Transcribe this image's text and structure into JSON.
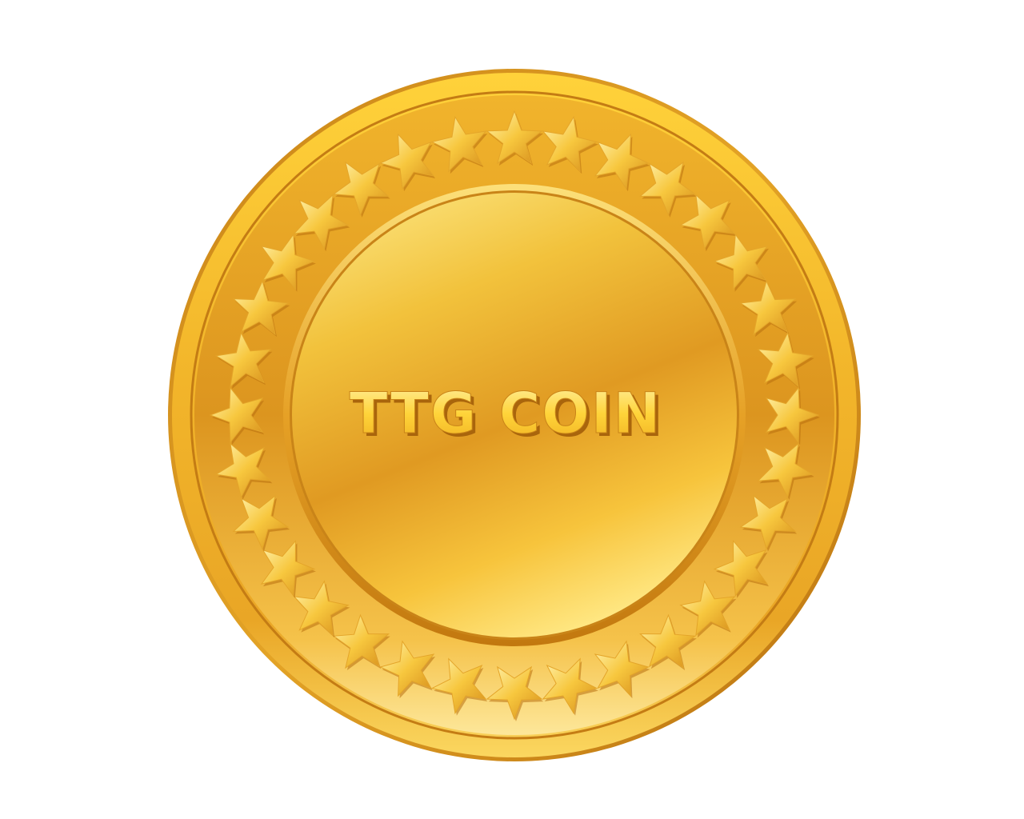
{
  "coin": {
    "label": "TTG COIN",
    "star_count": 32,
    "colors": {
      "background": "#ffffff",
      "gold_light": "#ffe680",
      "gold_mid": "#f5b820",
      "gold_dark": "#d8891c",
      "gold_deep": "#b86e10",
      "text_face": "#ffe15a",
      "text_shadow": "#a9650c"
    }
  }
}
